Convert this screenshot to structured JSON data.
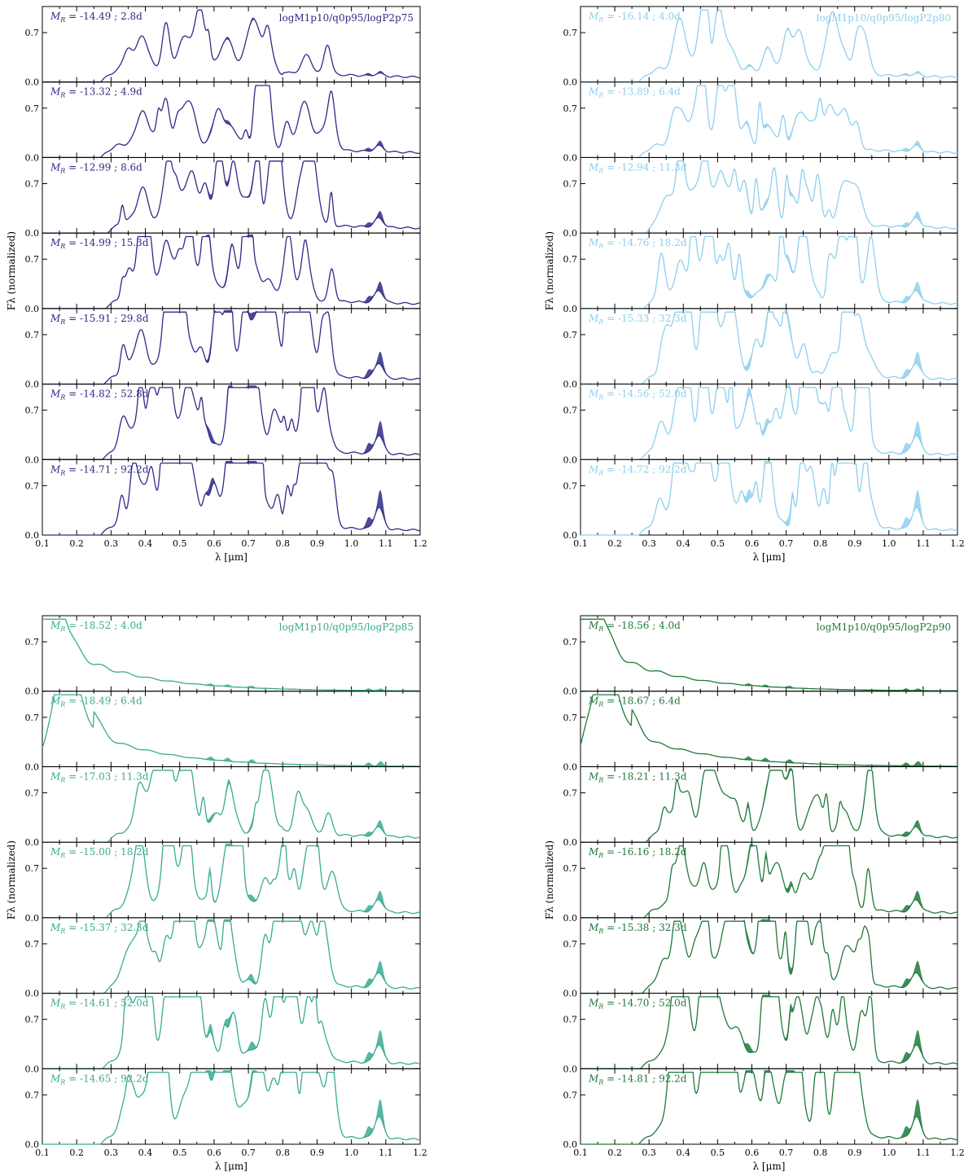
{
  "figure": {
    "ylabel": "Fλ (normalized)",
    "xlabel": "λ [μm]",
    "xticks": [
      "0.1",
      "0.2",
      "0.3",
      "0.4",
      "0.5",
      "0.6",
      "0.7",
      "0.8",
      "0.9",
      "1.0",
      "1.1",
      "1.2"
    ],
    "yticks": [
      "0.0",
      "0.7"
    ]
  },
  "chart_data": [
    {
      "type": "line",
      "title": "logM1p10/q0p95/logP2p75",
      "color": "#2f2a86",
      "xlim": [
        0.1,
        1.2
      ],
      "ylim": [
        0,
        1.07
      ],
      "epochs": [
        {
          "label": "-14.49 ; 2.8d",
          "MR": -14.49,
          "day": 2.8
        },
        {
          "label": "-13.32 ; 4.9d",
          "MR": -13.32,
          "day": 4.9
        },
        {
          "label": "-12.99 ; 8.6d",
          "MR": -12.99,
          "day": 8.6
        },
        {
          "label": "-14.99 ; 15.3d",
          "MR": -14.99,
          "day": 15.3
        },
        {
          "label": "-15.91 ; 29.8d",
          "MR": -15.91,
          "day": 29.8
        },
        {
          "label": "-14.82 ; 52.8d",
          "MR": -14.82,
          "day": 52.8
        },
        {
          "label": "-14.71 ; 92.2d",
          "MR": -14.71,
          "day": 92.2
        }
      ]
    },
    {
      "type": "line",
      "title": "logM1p10/q0p95/logP2p80",
      "color": "#8ecfee",
      "xlim": [
        0.1,
        1.2
      ],
      "ylim": [
        0,
        1.07
      ],
      "epochs": [
        {
          "label": "-16.14 ; 4.0d",
          "MR": -16.14,
          "day": 4.0
        },
        {
          "label": "-13.89 ; 6.4d",
          "MR": -13.89,
          "day": 6.4
        },
        {
          "label": "-12.94 ; 11.3d",
          "MR": -12.94,
          "day": 11.3
        },
        {
          "label": "-14.76 ; 18.2d",
          "MR": -14.76,
          "day": 18.2
        },
        {
          "label": "-15.33 ; 32.3d",
          "MR": -15.33,
          "day": 32.3
        },
        {
          "label": "-14.56 ; 52.0d",
          "MR": -14.56,
          "day": 52.0
        },
        {
          "label": "-14.72 ; 92.2d",
          "MR": -14.72,
          "day": 92.2
        }
      ]
    },
    {
      "type": "line",
      "title": "logM1p10/q0p95/logP2p85",
      "color": "#3aaa92",
      "xlim": [
        0.1,
        1.2
      ],
      "ylim": [
        0,
        1.07
      ],
      "epochs": [
        {
          "label": "-18.52 ; 4.0d",
          "MR": -18.52,
          "day": 4.0
        },
        {
          "label": "-18.49 ; 6.4d",
          "MR": -18.49,
          "day": 6.4
        },
        {
          "label": "-17.03 ; 11.3d",
          "MR": -17.03,
          "day": 11.3
        },
        {
          "label": "-15.00 ; 18.2d",
          "MR": -15.0,
          "day": 18.2
        },
        {
          "label": "-15.37 ; 32.3d",
          "MR": -15.37,
          "day": 32.3
        },
        {
          "label": "-14.61 ; 52.0d",
          "MR": -14.61,
          "day": 52.0
        },
        {
          "label": "-14.65 ; 92.2d",
          "MR": -14.65,
          "day": 92.2
        }
      ]
    },
    {
      "type": "line",
      "title": "logM1p10/q0p95/logP2p90",
      "color": "#1e7a3a",
      "xlim": [
        0.1,
        1.2
      ],
      "ylim": [
        0,
        1.07
      ],
      "epochs": [
        {
          "label": "-18.56 ; 4.0d",
          "MR": -18.56,
          "day": 4.0
        },
        {
          "label": "-18.67 ; 6.4d",
          "MR": -18.67,
          "day": 6.4
        },
        {
          "label": "-18.21 ; 11.3d",
          "MR": -18.21,
          "day": 11.3
        },
        {
          "label": "-16.16 ; 18.2d",
          "MR": -16.16,
          "day": 18.2
        },
        {
          "label": "-15.38 ; 32.3d",
          "MR": -15.38,
          "day": 32.3
        },
        {
          "label": "-14.70 ; 52.0d",
          "MR": -14.7,
          "day": 52.0
        },
        {
          "label": "-14.81 ; 92.2d",
          "MR": -14.81,
          "day": 92.2
        }
      ]
    }
  ]
}
